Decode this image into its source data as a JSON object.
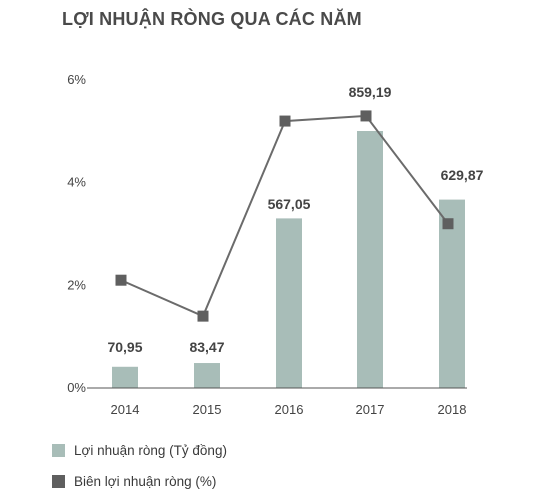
{
  "title": "LỢI NHUẬN RÒNG QUA CÁC NĂM",
  "colors": {
    "bar": "#a8bdb8",
    "line": "#6b6b6b",
    "marker": "#5f5f5f",
    "axis": "#555555"
  },
  "legend": [
    {
      "label": "Lợi nhuận ròng (Tỷ đồng)",
      "color": "#a8bdb8"
    },
    {
      "label": "Biên lợi nhuận ròng (%)",
      "color": "#5f5f5f"
    }
  ],
  "chart_data": {
    "type": "bar+line",
    "categories": [
      "2014",
      "2015",
      "2016",
      "2017",
      "2018"
    ],
    "series": [
      {
        "name": "Lợi nhuận ròng (Tỷ đồng)",
        "type": "bar",
        "values": [
          70.95,
          83.47,
          567.05,
          859.19,
          629.87
        ],
        "labels": [
          "70,95",
          "83,47",
          "567,05",
          "859,19",
          "629,87"
        ]
      },
      {
        "name": "Biên lợi nhuận ròng (%)",
        "type": "line",
        "values": [
          2.1,
          1.4,
          5.2,
          5.3,
          3.2
        ]
      }
    ],
    "y_axis": {
      "ticks": [
        "0%",
        "2%",
        "4%",
        "6%"
      ],
      "range": [
        0,
        6
      ]
    },
    "legend_position": "bottom-left",
    "grid": false
  }
}
